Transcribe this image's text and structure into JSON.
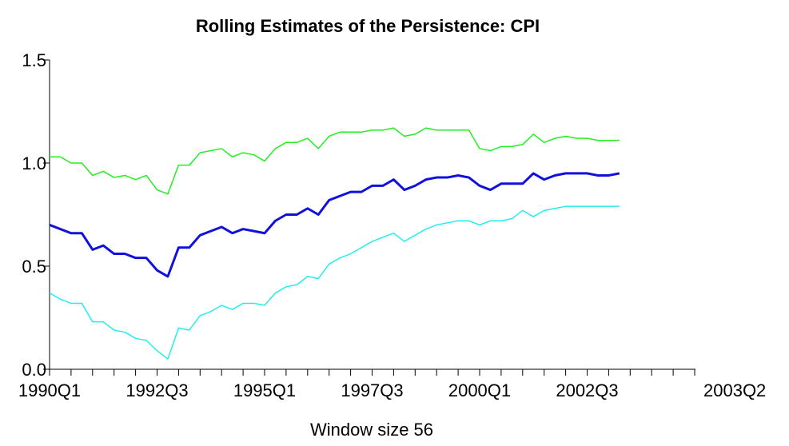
{
  "chart_data": {
    "type": "line",
    "title": "Rolling Estimates of the Persistence: CPI",
    "x_label": "Window size 56",
    "x_end_label": "2003Q2",
    "categories": [
      "1990Q1",
      null,
      null,
      null,
      null,
      null,
      null,
      null,
      null,
      null,
      "1992Q3",
      null,
      null,
      null,
      null,
      null,
      null,
      null,
      null,
      null,
      "1995Q1",
      null,
      null,
      null,
      null,
      null,
      null,
      null,
      null,
      null,
      "1997Q3",
      null,
      null,
      null,
      null,
      null,
      null,
      null,
      null,
      null,
      "2000Q1",
      null,
      null,
      null,
      null,
      null,
      null,
      null,
      null,
      null,
      "2002Q3",
      null,
      null,
      null,
      null,
      null,
      null,
      null,
      null,
      null,
      null
    ],
    "ylim": [
      0,
      1.5
    ],
    "yticks": [
      {
        "value": 0,
        "label": "0.0"
      },
      0.5,
      {
        "value": 1,
        "label": "1.0"
      },
      {
        "value": 1.5,
        "label": "1.5"
      }
    ],
    "series": [
      {
        "color": "#22ee22",
        "width": 1.5,
        "values": [
          1.03,
          1.03,
          1.0,
          1.0,
          0.94,
          0.96,
          0.93,
          0.94,
          0.92,
          0.94,
          0.87,
          0.85,
          0.99,
          0.99,
          1.05,
          1.06,
          1.07,
          1.03,
          1.05,
          1.04,
          1.01,
          1.07,
          1.1,
          1.1,
          1.12,
          1.07,
          1.13,
          1.15,
          1.15,
          1.15,
          1.16,
          1.16,
          1.17,
          1.13,
          1.14,
          1.17,
          1.16,
          1.16,
          1.16,
          1.16,
          1.07,
          1.06,
          1.08,
          1.08,
          1.09,
          1.14,
          1.1,
          1.12,
          1.13,
          1.12,
          1.12,
          1.11,
          1.11,
          1.11,
          null,
          null,
          null,
          null,
          null,
          null,
          null
        ]
      },
      {
        "color": "#1111dd",
        "width": 3,
        "values": [
          0.7,
          0.68,
          0.66,
          0.66,
          0.58,
          0.6,
          0.56,
          0.56,
          0.54,
          0.54,
          0.48,
          0.45,
          0.59,
          0.59,
          0.65,
          0.67,
          0.69,
          0.66,
          0.68,
          0.67,
          0.66,
          0.72,
          0.75,
          0.75,
          0.78,
          0.75,
          0.82,
          0.84,
          0.86,
          0.86,
          0.89,
          0.89,
          0.92,
          0.87,
          0.89,
          0.92,
          0.93,
          0.93,
          0.94,
          0.93,
          0.89,
          0.87,
          0.9,
          0.9,
          0.9,
          0.95,
          0.92,
          0.94,
          0.95,
          0.95,
          0.95,
          0.94,
          0.94,
          0.95,
          null,
          null,
          null,
          null,
          null,
          null,
          null
        ]
      },
      {
        "color": "#22eeee",
        "width": 1.5,
        "values": [
          0.37,
          0.34,
          0.32,
          0.32,
          0.23,
          0.23,
          0.19,
          0.18,
          0.15,
          0.14,
          0.09,
          0.05,
          0.2,
          0.19,
          0.26,
          0.28,
          0.31,
          0.29,
          0.32,
          0.32,
          0.31,
          0.37,
          0.4,
          0.41,
          0.45,
          0.44,
          0.51,
          0.54,
          0.56,
          0.59,
          0.62,
          0.64,
          0.66,
          0.62,
          0.65,
          0.68,
          0.7,
          0.71,
          0.72,
          0.72,
          0.7,
          0.72,
          0.72,
          0.73,
          0.77,
          0.74,
          0.77,
          0.78,
          0.79,
          0.79,
          0.79,
          0.79,
          0.79,
          0.79,
          null,
          null,
          null,
          null,
          null,
          null,
          null
        ]
      }
    ]
  }
}
